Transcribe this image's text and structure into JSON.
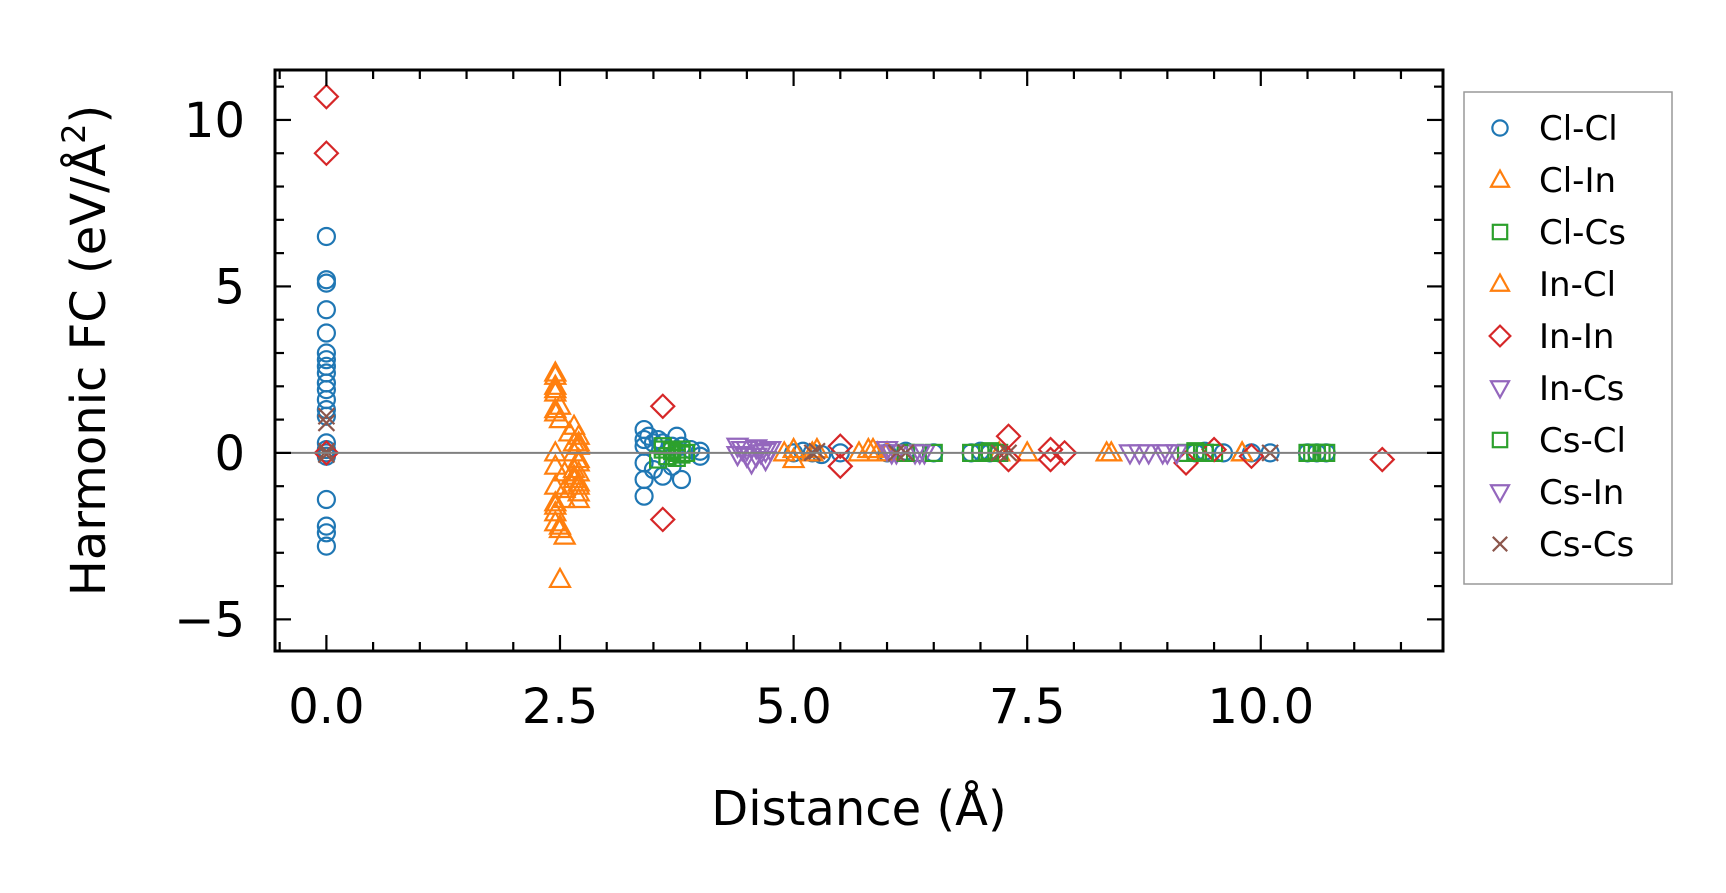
{
  "chart_data": {
    "type": "scatter",
    "xlabel": "Distance (Å)",
    "ylabel_main": "Harmonic FC (eV/Å",
    "ylabel_sup": "2",
    "ylabel_close": ")",
    "xlim": [
      -0.55,
      11.95
    ],
    "ylim": [
      -5.95,
      11.5
    ],
    "xticks": [
      0.0,
      2.5,
      5.0,
      7.5,
      10.0
    ],
    "xtick_labels": [
      "0.0",
      "2.5",
      "5.0",
      "7.5",
      "10.0"
    ],
    "yticks": [
      -5,
      0,
      5,
      10
    ],
    "ytick_labels": [
      "−5",
      "0",
      "5",
      "10"
    ],
    "zero_line": 0,
    "series": [
      {
        "name": "Cl-Cl",
        "marker": "circle",
        "color": "#1f77b4",
        "x": [
          0,
          0,
          0,
          0,
          0,
          0,
          0,
          0,
          0,
          0,
          0,
          0,
          0,
          0,
          0,
          0,
          0,
          0,
          0,
          0,
          0,
          0,
          3.4,
          3.4,
          3.4,
          3.4,
          3.4,
          3.4,
          3.45,
          3.5,
          3.5,
          3.55,
          3.6,
          3.6,
          3.7,
          3.7,
          3.75,
          3.8,
          3.8,
          3.9,
          4.0,
          4.0,
          5.0,
          5.1,
          5.2,
          5.3,
          5.5,
          6.0,
          6.2,
          6.5,
          6.9,
          7.0,
          7.1,
          7.2,
          9.3,
          9.4,
          9.6,
          9.9,
          10.1,
          10.5,
          10.6,
          10.7
        ],
        "y": [
          6.5,
          5.2,
          5.1,
          4.3,
          3.6,
          3.0,
          2.8,
          2.6,
          2.4,
          2.1,
          1.9,
          1.6,
          1.3,
          1.1,
          0.1,
          0,
          -0.1,
          -1.4,
          -2.2,
          -2.4,
          -2.8,
          0.3,
          0.7,
          0.4,
          0.2,
          -0.3,
          -0.8,
          -1.3,
          0.5,
          0.3,
          -0.5,
          0.4,
          0.3,
          -0.7,
          0.2,
          -0.4,
          0.5,
          0.2,
          -0.8,
          0.1,
          0.05,
          -0.1,
          0,
          0.05,
          0,
          -0.05,
          0,
          0,
          0.05,
          0,
          0,
          0.05,
          0,
          0,
          0,
          0.05,
          0,
          0,
          0,
          0,
          0,
          0
        ]
      },
      {
        "name": "Cl-In",
        "marker": "triangle-up",
        "color": "#ff7f0e",
        "x": [
          2.45,
          2.45,
          2.45,
          2.45,
          2.45,
          2.45,
          2.45,
          2.45,
          2.45,
          2.45,
          2.45,
          2.5,
          2.5,
          2.55,
          2.55,
          2.55,
          2.65,
          2.65,
          2.65,
          2.65,
          2.7,
          2.7,
          2.7,
          2.7,
          2.7,
          2.7,
          2.7,
          2.7,
          5.0,
          5.2,
          5.8,
          5.9,
          6.0,
          7.2,
          8.4,
          9.8
        ],
        "y": [
          2.4,
          2.0,
          1.9,
          1.3,
          1.2,
          0.0,
          -0.4,
          -1.0,
          -1.5,
          -1.8,
          -2.1,
          -2.3,
          -3.8,
          -0.6,
          -1.1,
          -1.4,
          0.8,
          0.3,
          0.0,
          -0.5,
          -0.2,
          -0.6,
          -0.9,
          -1.2,
          -1.4,
          0.5,
          0.2,
          -0.3,
          0.1,
          0,
          0.1,
          0,
          0,
          0,
          0,
          0
        ]
      },
      {
        "name": "Cl-Cs",
        "marker": "square",
        "color": "#2ca02c",
        "x": [
          3.6,
          3.65,
          3.7,
          3.75,
          3.8,
          3.85,
          6.3,
          6.9,
          7.0,
          7.1,
          7.2,
          9.2,
          9.3,
          9.4,
          9.5,
          10.5,
          10.6,
          10.7
        ],
        "y": [
          0.1,
          -0.1,
          0.05,
          -0.15,
          0.1,
          0,
          0,
          0,
          0,
          0.05,
          0,
          0,
          0.05,
          0,
          0,
          0,
          0,
          0
        ]
      },
      {
        "name": "In-Cl",
        "marker": "triangle-up",
        "color": "#ff7f0e",
        "x": [
          2.45,
          2.45,
          2.5,
          2.5,
          2.45,
          2.5,
          2.55,
          2.6,
          2.65,
          2.65,
          2.7,
          2.7,
          4.9,
          5.0,
          5.25,
          5.7,
          5.85,
          7.5,
          8.35,
          9.8
        ],
        "y": [
          2.3,
          1.8,
          1.4,
          1.0,
          -1.6,
          -2.2,
          -2.5,
          0.6,
          -0.8,
          -0.7,
          0.3,
          -1.0,
          0,
          -0.2,
          0.1,
          0,
          0.1,
          0,
          0,
          0
        ]
      },
      {
        "name": "In-In",
        "marker": "diamond",
        "color": "#d62728",
        "x": [
          0,
          0,
          0,
          3.6,
          3.6,
          5.5,
          5.5,
          7.3,
          7.3,
          7.75,
          7.75,
          7.9,
          9.2,
          9.5,
          9.9,
          11.3
        ],
        "y": [
          10.7,
          9.0,
          0.0,
          1.4,
          -2.0,
          0.2,
          -0.4,
          0.5,
          -0.2,
          0.1,
          -0.2,
          0,
          -0.3,
          0.1,
          -0.1,
          -0.2
        ]
      },
      {
        "name": "In-Cs",
        "marker": "triangle-down",
        "color": "#9467bd",
        "x": [
          4.4,
          4.45,
          4.5,
          4.55,
          4.6,
          4.65,
          4.7,
          4.75,
          6.0,
          6.1,
          6.3,
          6.4,
          8.6,
          8.8,
          9.0,
          9.1
        ],
        "y": [
          0.2,
          0.1,
          -0.1,
          -0.3,
          0.15,
          0,
          -0.2,
          0.1,
          0.1,
          0,
          0,
          0,
          0,
          0,
          0,
          0
        ]
      },
      {
        "name": "Cs-Cl",
        "marker": "square",
        "color": "#2ca02c",
        "x": [
          3.55,
          3.6,
          3.65,
          3.7,
          3.75,
          3.8,
          6.2,
          6.5,
          7.0,
          7.1,
          9.3,
          9.4,
          10.55,
          10.65
        ],
        "y": [
          -0.2,
          0.2,
          -0.1,
          0.1,
          0,
          -0.05,
          0,
          0,
          0,
          0,
          0,
          0,
          0,
          0
        ]
      },
      {
        "name": "Cs-In",
        "marker": "triangle-down",
        "color": "#9467bd",
        "x": [
          4.4,
          4.5,
          4.6,
          4.7,
          6.05,
          6.35,
          8.7,
          8.95
        ],
        "y": [
          -0.05,
          0.1,
          -0.1,
          0.05,
          0,
          0,
          0,
          0
        ]
      },
      {
        "name": "Cs-Cs",
        "marker": "x",
        "color": "#8c564b",
        "x": [
          0,
          0,
          0,
          0,
          5.2,
          5.25,
          6.1,
          6.2,
          7.2,
          7.3,
          10.1
        ],
        "y": [
          1.1,
          0.9,
          0.05,
          -0.05,
          0,
          0.05,
          0,
          0,
          0,
          0,
          0
        ]
      }
    ],
    "legend": {
      "position": "right-outside",
      "entries": [
        "Cl-Cl",
        "Cl-In",
        "Cl-Cs",
        "In-Cl",
        "In-In",
        "In-Cs",
        "Cs-Cl",
        "Cs-In",
        "Cs-Cs"
      ]
    }
  }
}
